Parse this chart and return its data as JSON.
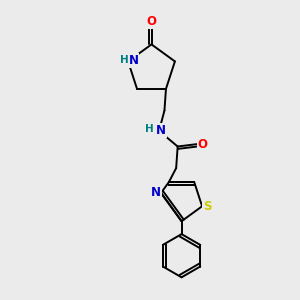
{
  "bg_color": "#ebebeb",
  "bond_color": "#000000",
  "atom_colors": {
    "O": "#ff0000",
    "N": "#0000cd",
    "S": "#cccc00",
    "H": "#008080",
    "C": "#000000"
  },
  "font_size_atom": 8.5,
  "font_size_H": 7.5,
  "lw": 1.4
}
